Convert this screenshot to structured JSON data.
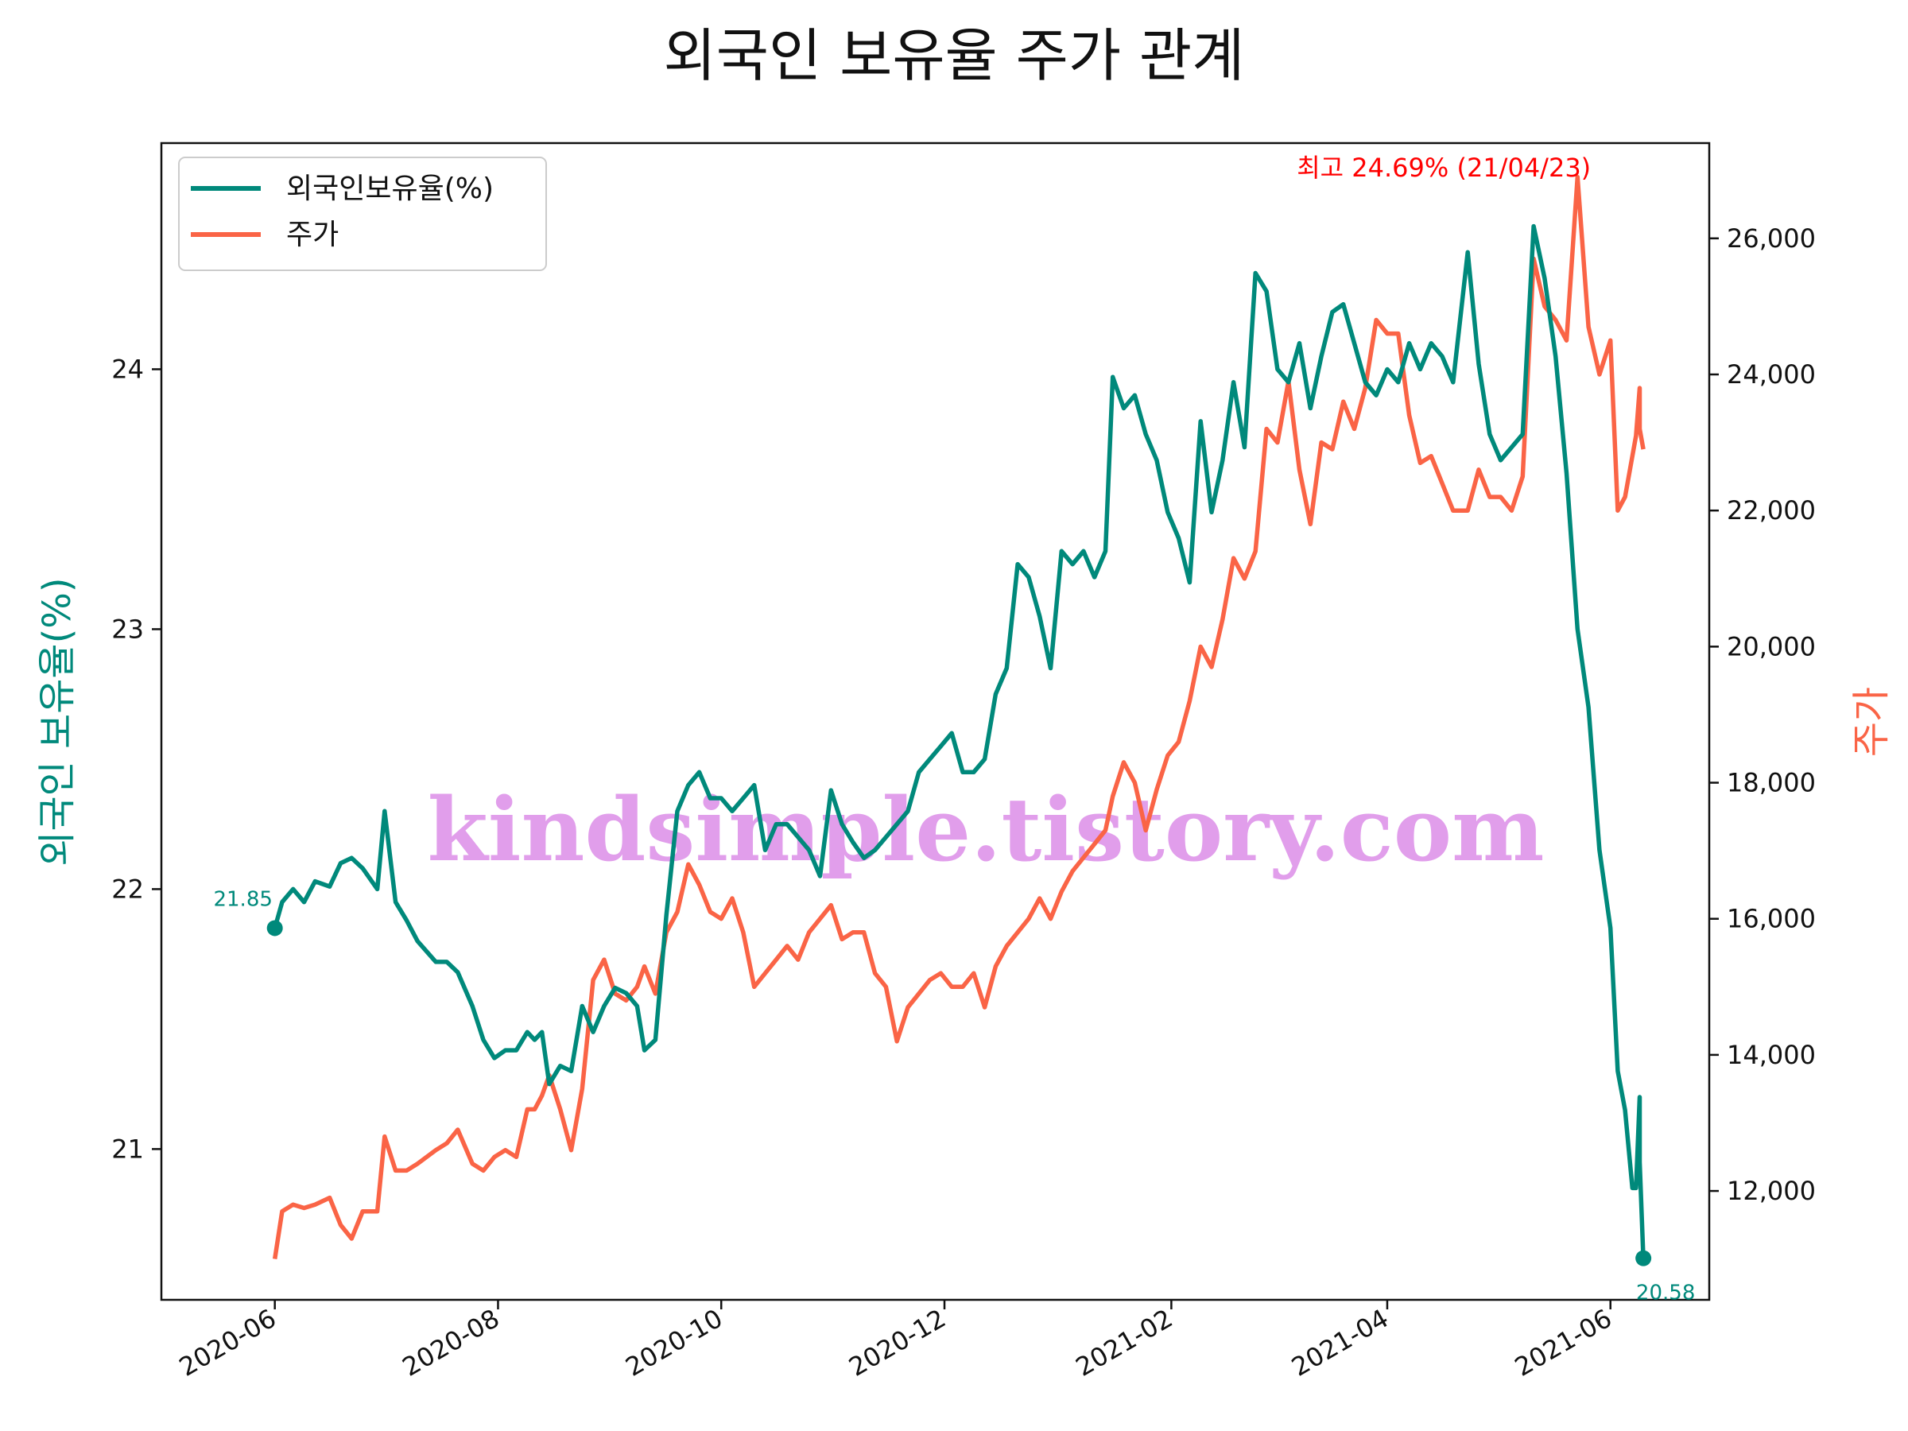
{
  "chart_data": {
    "type": "line",
    "title": "외국인 보유율 주가 관계",
    "ylabel_left": "외국인 보유율(%)",
    "ylabel_right": "주가",
    "x_ticks": [
      "2020-06",
      "2020-08",
      "2020-10",
      "2020-12",
      "2021-02",
      "2021-04",
      "2021-06"
    ],
    "y_left_ticks": [
      "21",
      "22",
      "23",
      "24"
    ],
    "y_right_ticks": [
      "12,000",
      "14,000",
      "16,000",
      "18,000",
      "20,000",
      "22,000",
      "24,000",
      "26,000"
    ],
    "ylim_left": [
      20.42,
      24.87
    ],
    "ylim_right": [
      10400,
      27400
    ],
    "legend": {
      "placement": "top-left",
      "items": [
        "외국인보유율(%)",
        "주가"
      ]
    },
    "grid": false,
    "colors": {
      "foreign": "#00897b",
      "price": "#fa6446",
      "annotation": "#ff0000",
      "watermark": "#dc8ee8"
    },
    "annotations": {
      "max": {
        "text": "최고 24.69% (21/04/23)",
        "date": "2021-04-23"
      },
      "start": {
        "text": "21.85",
        "date": "2020-06-01",
        "value": 21.85
      },
      "end": {
        "text": "20.58",
        "date": "2021-06-10",
        "value": 20.58
      }
    },
    "watermark": "kindsimple.tistory.com",
    "series": [
      {
        "name": "외국인보유율(%)",
        "axis": "left",
        "points": [
          [
            "2020-06-01",
            21.85
          ],
          [
            "2020-06-03",
            21.95
          ],
          [
            "2020-06-06",
            22.0
          ],
          [
            "2020-06-09",
            21.95
          ],
          [
            "2020-06-12",
            22.03
          ],
          [
            "2020-06-16",
            22.01
          ],
          [
            "2020-06-19",
            22.1
          ],
          [
            "2020-06-22",
            22.12
          ],
          [
            "2020-06-25",
            22.08
          ],
          [
            "2020-06-29",
            22.0
          ],
          [
            "2020-07-01",
            22.3
          ],
          [
            "2020-07-04",
            21.95
          ],
          [
            "2020-07-07",
            21.88
          ],
          [
            "2020-07-10",
            21.8
          ],
          [
            "2020-07-15",
            21.72
          ],
          [
            "2020-07-18",
            21.72
          ],
          [
            "2020-07-21",
            21.68
          ],
          [
            "2020-07-25",
            21.55
          ],
          [
            "2020-07-28",
            21.42
          ],
          [
            "2020-07-31",
            21.35
          ],
          [
            "2020-08-03",
            21.38
          ],
          [
            "2020-08-06",
            21.38
          ],
          [
            "2020-08-09",
            21.45
          ],
          [
            "2020-08-11",
            21.42
          ],
          [
            "2020-08-13",
            21.45
          ],
          [
            "2020-08-15",
            21.25
          ],
          [
            "2020-08-18",
            21.32
          ],
          [
            "2020-08-21",
            21.3
          ],
          [
            "2020-08-24",
            21.55
          ],
          [
            "2020-08-27",
            21.45
          ],
          [
            "2020-08-30",
            21.55
          ],
          [
            "2020-09-02",
            21.62
          ],
          [
            "2020-09-05",
            21.6
          ],
          [
            "2020-09-08",
            21.55
          ],
          [
            "2020-09-10",
            21.38
          ],
          [
            "2020-09-13",
            21.42
          ],
          [
            "2020-09-16",
            21.9
          ],
          [
            "2020-09-19",
            22.3
          ],
          [
            "2020-09-22",
            22.4
          ],
          [
            "2020-09-25",
            22.45
          ],
          [
            "2020-09-28",
            22.35
          ],
          [
            "2020-10-01",
            22.35
          ],
          [
            "2020-10-04",
            22.3
          ],
          [
            "2020-10-07",
            22.35
          ],
          [
            "2020-10-10",
            22.4
          ],
          [
            "2020-10-13",
            22.15
          ],
          [
            "2020-10-16",
            22.25
          ],
          [
            "2020-10-19",
            22.25
          ],
          [
            "2020-10-22",
            22.2
          ],
          [
            "2020-10-25",
            22.15
          ],
          [
            "2020-10-28",
            22.05
          ],
          [
            "2020-10-31",
            22.38
          ],
          [
            "2020-11-03",
            22.25
          ],
          [
            "2020-11-06",
            22.18
          ],
          [
            "2020-11-09",
            22.12
          ],
          [
            "2020-11-12",
            22.15
          ],
          [
            "2020-11-15",
            22.2
          ],
          [
            "2020-11-18",
            22.25
          ],
          [
            "2020-11-21",
            22.3
          ],
          [
            "2020-11-24",
            22.45
          ],
          [
            "2020-11-27",
            22.5
          ],
          [
            "2020-11-30",
            22.55
          ],
          [
            "2020-12-03",
            22.6
          ],
          [
            "2020-12-06",
            22.45
          ],
          [
            "2020-12-09",
            22.45
          ],
          [
            "2020-12-12",
            22.5
          ],
          [
            "2020-12-15",
            22.75
          ],
          [
            "2020-12-18",
            22.85
          ],
          [
            "2020-12-21",
            23.25
          ],
          [
            "2020-12-24",
            23.2
          ],
          [
            "2020-12-27",
            23.05
          ],
          [
            "2020-12-30",
            22.85
          ],
          [
            "2021-01-02",
            23.3
          ],
          [
            "2021-01-05",
            23.25
          ],
          [
            "2021-01-08",
            23.3
          ],
          [
            "2021-01-11",
            23.2
          ],
          [
            "2021-01-14",
            23.3
          ],
          [
            "2021-01-16",
            23.97
          ],
          [
            "2021-01-19",
            23.85
          ],
          [
            "2021-01-22",
            23.9
          ],
          [
            "2021-01-25",
            23.75
          ],
          [
            "2021-01-28",
            23.65
          ],
          [
            "2021-01-31",
            23.45
          ],
          [
            "2021-02-03",
            23.35
          ],
          [
            "2021-02-06",
            23.18
          ],
          [
            "2021-02-09",
            23.8
          ],
          [
            "2021-02-12",
            23.45
          ],
          [
            "2021-02-15",
            23.65
          ],
          [
            "2021-02-18",
            23.95
          ],
          [
            "2021-02-21",
            23.7
          ],
          [
            "2021-02-24",
            24.37
          ],
          [
            "2021-02-27",
            24.3
          ],
          [
            "2021-03-02",
            24.0
          ],
          [
            "2021-03-05",
            23.95
          ],
          [
            "2021-03-08",
            24.1
          ],
          [
            "2021-03-11",
            23.85
          ],
          [
            "2021-03-14",
            24.05
          ],
          [
            "2021-03-17",
            24.22
          ],
          [
            "2021-03-20",
            24.25
          ],
          [
            "2021-03-23",
            24.1
          ],
          [
            "2021-03-26",
            23.95
          ],
          [
            "2021-03-29",
            23.9
          ],
          [
            "2021-04-01",
            24.0
          ],
          [
            "2021-04-04",
            23.95
          ],
          [
            "2021-04-07",
            24.1
          ],
          [
            "2021-04-10",
            24.0
          ],
          [
            "2021-04-13",
            24.1
          ],
          [
            "2021-04-16",
            24.05
          ],
          [
            "2021-04-19",
            23.95
          ],
          [
            "2021-04-23",
            24.45
          ],
          [
            "2021-04-26",
            24.02
          ],
          [
            "2021-04-29",
            23.75
          ],
          [
            "2021-05-02",
            23.65
          ],
          [
            "2021-05-05",
            23.7
          ],
          [
            "2021-05-08",
            23.75
          ],
          [
            "2021-05-11",
            24.55
          ],
          [
            "2021-05-14",
            24.35
          ],
          [
            "2021-05-17",
            24.05
          ],
          [
            "2021-05-20",
            23.6
          ],
          [
            "2021-05-23",
            23.0
          ],
          [
            "2021-05-26",
            22.7
          ],
          [
            "2021-05-29",
            22.15
          ],
          [
            "2021-06-01",
            21.85
          ],
          [
            "2021-06-03",
            21.3
          ],
          [
            "2021-06-05",
            21.15
          ],
          [
            "2021-06-07",
            20.85
          ],
          [
            "2021-06-08",
            20.85
          ],
          [
            "2021-06-09",
            21.2
          ],
          [
            "2021-06-09",
            20.95
          ],
          [
            "2021-06-10",
            20.58
          ]
        ]
      },
      {
        "name": "주가",
        "axis": "right",
        "points": [
          [
            "2020-06-01",
            11000
          ],
          [
            "2020-06-03",
            11700
          ],
          [
            "2020-06-06",
            11800
          ],
          [
            "2020-06-09",
            11750
          ],
          [
            "2020-06-12",
            11800
          ],
          [
            "2020-06-16",
            11900
          ],
          [
            "2020-06-19",
            11500
          ],
          [
            "2020-06-22",
            11300
          ],
          [
            "2020-06-25",
            11700
          ],
          [
            "2020-06-29",
            11700
          ],
          [
            "2020-07-01",
            12800
          ],
          [
            "2020-07-04",
            12300
          ],
          [
            "2020-07-07",
            12300
          ],
          [
            "2020-07-10",
            12400
          ],
          [
            "2020-07-15",
            12600
          ],
          [
            "2020-07-18",
            12700
          ],
          [
            "2020-07-21",
            12900
          ],
          [
            "2020-07-25",
            12400
          ],
          [
            "2020-07-28",
            12300
          ],
          [
            "2020-07-31",
            12500
          ],
          [
            "2020-08-03",
            12600
          ],
          [
            "2020-08-06",
            12500
          ],
          [
            "2020-08-09",
            13200
          ],
          [
            "2020-08-11",
            13200
          ],
          [
            "2020-08-13",
            13400
          ],
          [
            "2020-08-15",
            13700
          ],
          [
            "2020-08-18",
            13200
          ],
          [
            "2020-08-21",
            12600
          ],
          [
            "2020-08-24",
            13500
          ],
          [
            "2020-08-27",
            15100
          ],
          [
            "2020-08-30",
            15400
          ],
          [
            "2020-09-02",
            14900
          ],
          [
            "2020-09-05",
            14800
          ],
          [
            "2020-09-08",
            15000
          ],
          [
            "2020-09-10",
            15300
          ],
          [
            "2020-09-13",
            14900
          ],
          [
            "2020-09-16",
            15800
          ],
          [
            "2020-09-19",
            16100
          ],
          [
            "2020-09-22",
            16800
          ],
          [
            "2020-09-25",
            16500
          ],
          [
            "2020-09-28",
            16100
          ],
          [
            "2020-10-01",
            16000
          ],
          [
            "2020-10-04",
            16300
          ],
          [
            "2020-10-07",
            15800
          ],
          [
            "2020-10-10",
            15000
          ],
          [
            "2020-10-13",
            15200
          ],
          [
            "2020-10-16",
            15400
          ],
          [
            "2020-10-19",
            15600
          ],
          [
            "2020-10-22",
            15400
          ],
          [
            "2020-10-25",
            15800
          ],
          [
            "2020-10-28",
            16000
          ],
          [
            "2020-10-31",
            16200
          ],
          [
            "2020-11-03",
            15700
          ],
          [
            "2020-11-06",
            15800
          ],
          [
            "2020-11-09",
            15800
          ],
          [
            "2020-11-12",
            15200
          ],
          [
            "2020-11-15",
            15000
          ],
          [
            "2020-11-18",
            14200
          ],
          [
            "2020-11-21",
            14700
          ],
          [
            "2020-11-24",
            14900
          ],
          [
            "2020-11-27",
            15100
          ],
          [
            "2020-11-30",
            15200
          ],
          [
            "2020-12-03",
            15000
          ],
          [
            "2020-12-06",
            15000
          ],
          [
            "2020-12-09",
            15200
          ],
          [
            "2020-12-12",
            14700
          ],
          [
            "2020-12-15",
            15300
          ],
          [
            "2020-12-18",
            15600
          ],
          [
            "2020-12-21",
            15800
          ],
          [
            "2020-12-24",
            16000
          ],
          [
            "2020-12-27",
            16300
          ],
          [
            "2020-12-30",
            16000
          ],
          [
            "2021-01-02",
            16400
          ],
          [
            "2021-01-05",
            16700
          ],
          [
            "2021-01-08",
            16900
          ],
          [
            "2021-01-11",
            17100
          ],
          [
            "2021-01-14",
            17300
          ],
          [
            "2021-01-16",
            17800
          ],
          [
            "2021-01-19",
            18300
          ],
          [
            "2021-01-22",
            18000
          ],
          [
            "2021-01-25",
            17300
          ],
          [
            "2021-01-28",
            17900
          ],
          [
            "2021-01-31",
            18400
          ],
          [
            "2021-02-03",
            18600
          ],
          [
            "2021-02-06",
            19200
          ],
          [
            "2021-02-09",
            20000
          ],
          [
            "2021-02-12",
            19700
          ],
          [
            "2021-02-15",
            20400
          ],
          [
            "2021-02-18",
            21300
          ],
          [
            "2021-02-21",
            21000
          ],
          [
            "2021-02-24",
            21400
          ],
          [
            "2021-02-27",
            23200
          ],
          [
            "2021-03-02",
            23000
          ],
          [
            "2021-03-05",
            23900
          ],
          [
            "2021-03-08",
            22600
          ],
          [
            "2021-03-11",
            21800
          ],
          [
            "2021-03-14",
            23000
          ],
          [
            "2021-03-17",
            22900
          ],
          [
            "2021-03-20",
            23600
          ],
          [
            "2021-03-23",
            23200
          ],
          [
            "2021-03-26",
            23800
          ],
          [
            "2021-03-29",
            24800
          ],
          [
            "2021-04-01",
            24600
          ],
          [
            "2021-04-04",
            24600
          ],
          [
            "2021-04-07",
            23400
          ],
          [
            "2021-04-10",
            22700
          ],
          [
            "2021-04-13",
            22800
          ],
          [
            "2021-04-16",
            22400
          ],
          [
            "2021-04-19",
            22000
          ],
          [
            "2021-04-23",
            22000
          ],
          [
            "2021-04-26",
            22600
          ],
          [
            "2021-04-29",
            22200
          ],
          [
            "2021-05-02",
            22200
          ],
          [
            "2021-05-05",
            22000
          ],
          [
            "2021-05-08",
            22500
          ],
          [
            "2021-05-11",
            25700
          ],
          [
            "2021-05-14",
            25000
          ],
          [
            "2021-05-17",
            24800
          ],
          [
            "2021-05-20",
            24500
          ],
          [
            "2021-05-23",
            26900
          ],
          [
            "2021-05-26",
            24700
          ],
          [
            "2021-05-29",
            24000
          ],
          [
            "2021-06-01",
            24500
          ],
          [
            "2021-06-03",
            22000
          ],
          [
            "2021-06-05",
            22200
          ],
          [
            "2021-06-07",
            22800
          ],
          [
            "2021-06-08",
            23100
          ],
          [
            "2021-06-09",
            23800
          ],
          [
            "2021-06-09",
            23200
          ],
          [
            "2021-06-10",
            22900
          ]
        ]
      }
    ]
  }
}
